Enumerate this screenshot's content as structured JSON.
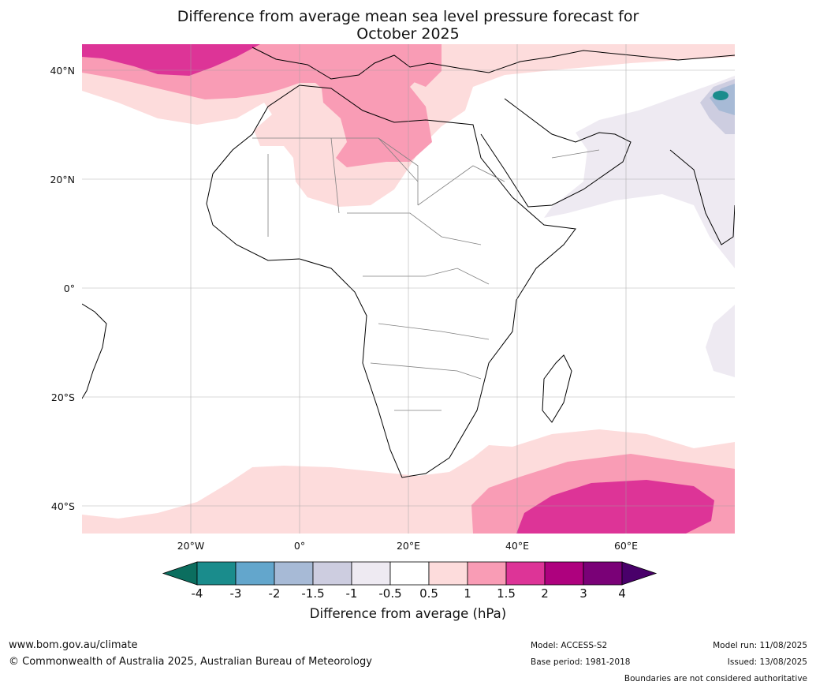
{
  "title": {
    "line1": "Difference from average mean sea level pressure forecast for",
    "line2": "October 2025"
  },
  "axes": {
    "lat_labels": [
      "40°N",
      "20°N",
      "0°",
      "20°S",
      "40°S"
    ],
    "lon_labels": [
      "20°W",
      "0°",
      "20°E",
      "40°E",
      "60°E"
    ],
    "lat_values": [
      40,
      20,
      0,
      -20,
      -40
    ],
    "lon_values": [
      -20,
      0,
      20,
      40,
      60
    ],
    "lon_range": [
      -40,
      80
    ],
    "lat_range": [
      -45,
      45
    ]
  },
  "colorbar": {
    "ticks": [
      "-4",
      "-3",
      "-2",
      "-1.5",
      "-1",
      "-0.5",
      "0.5",
      "1",
      "1.5",
      "2",
      "3",
      "4"
    ],
    "colors": [
      "#1a8c8c",
      "#63a6cc",
      "#a7bad6",
      "#cdcde0",
      "#eeeaf2",
      "#ffffff",
      "#fddcdc",
      "#f99cb5",
      "#dd3497",
      "#ae017e",
      "#7a0177"
    ],
    "under_color": "#0b6e5f",
    "over_color": "#49006a",
    "label": "Difference from average (hPa)"
  },
  "footer": {
    "website": "www.bom.gov.au/climate",
    "copyright": "© Commonwealth of Australia 2025, Australian Bureau of Meteorology",
    "model": "Model: ACCESS-S2",
    "base_period": "Base period: 1981-2018",
    "model_run": "Model run: 11/08/2025",
    "issued": "Issued: 13/08/2025",
    "boundaries": "Boundaries are not considered authoritative"
  }
}
